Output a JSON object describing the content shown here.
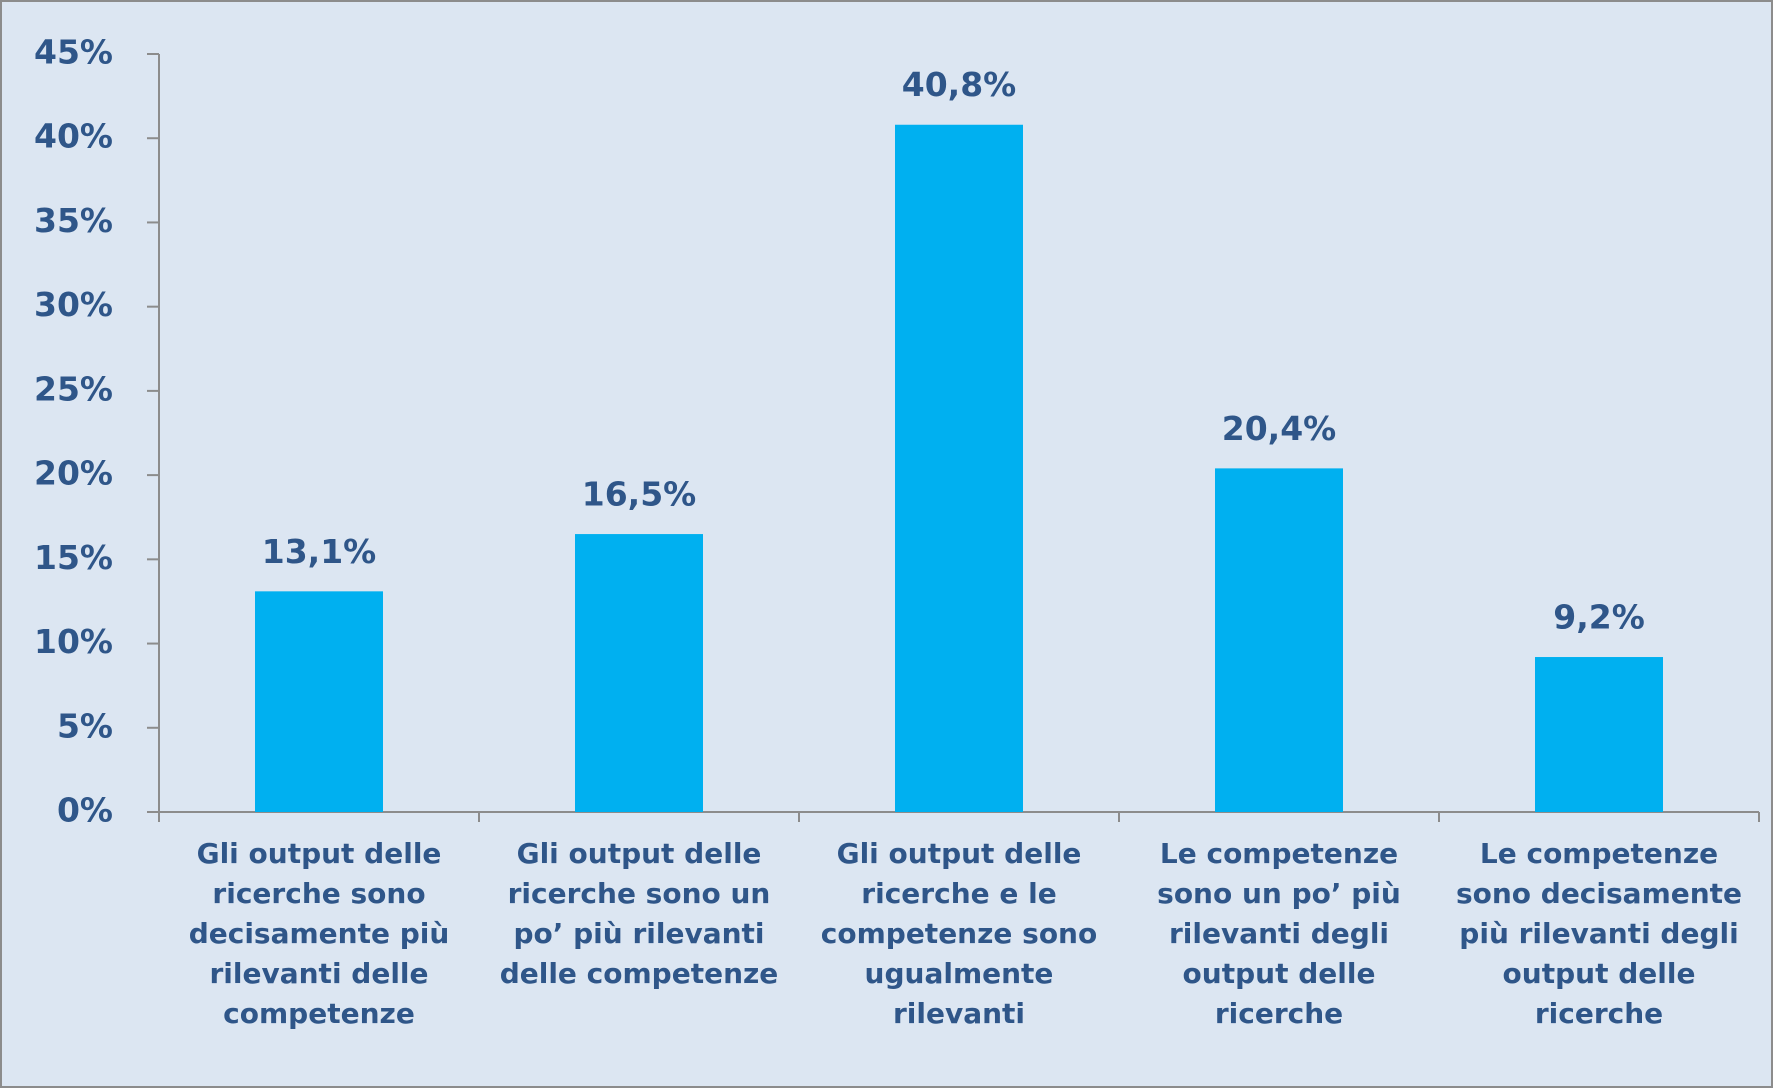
{
  "chart_data": {
    "type": "bar",
    "categories": [
      "Gli output delle ricerche sono decisamente più rilevanti delle competenze",
      "Gli output delle ricerche sono un po’ più rilevanti delle competenze",
      "Gli output delle ricerche e le competenze sono ugualmente rilevanti",
      "Le competenze sono un po’ più rilevanti degli output delle ricerche",
      "Le competenze sono decisamente più rilevanti degli output delle ricerche"
    ],
    "values": [
      13.1,
      16.5,
      40.8,
      20.4,
      9.2
    ],
    "value_labels": [
      "13,1%",
      "16,5%",
      "40,8%",
      "20,4%",
      "9,2%"
    ],
    "color": "#00b0f0",
    "ylim": [
      0,
      45
    ],
    "yticks": [
      {
        "value": 0,
        "label": "0%"
      },
      {
        "value": 5,
        "label": "5%"
      },
      {
        "value": 10,
        "label": "10%"
      },
      {
        "value": 15,
        "label": "15%"
      },
      {
        "value": 20,
        "label": "20%"
      },
      {
        "value": 25,
        "label": "25%"
      },
      {
        "value": 30,
        "label": "30%"
      },
      {
        "value": 35,
        "label": "35%"
      },
      {
        "value": 40,
        "label": "40%"
      },
      {
        "value": 45,
        "label": "45%"
      }
    ],
    "grid": false
  }
}
